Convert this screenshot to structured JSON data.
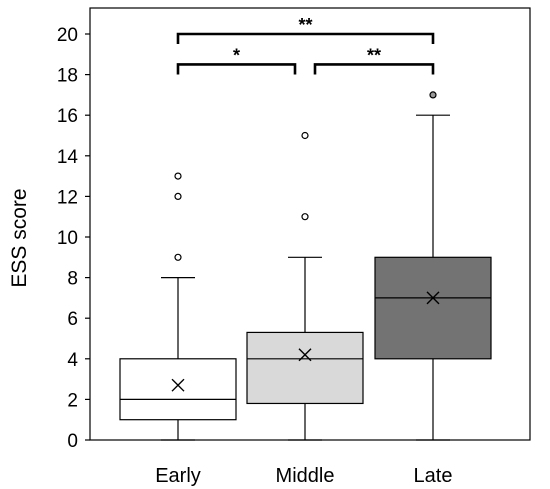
{
  "chart_data": {
    "type": "box",
    "xlabel": "",
    "ylabel": "ESS score",
    "ylim": [
      0,
      21
    ],
    "y_ticks": [
      0,
      2,
      4,
      6,
      8,
      10,
      12,
      14,
      16,
      18,
      20
    ],
    "grid": false,
    "categories": [
      "Early",
      "Middle",
      "Late"
    ],
    "boxes": [
      {
        "category": "Early",
        "whisker_low": 0,
        "q1": 1,
        "median": 2,
        "q3": 4,
        "whisker_high": 8,
        "mean": 2.7,
        "outliers": [
          9,
          12,
          13
        ],
        "fill": "#ffffff"
      },
      {
        "category": "Middle",
        "whisker_low": 0,
        "q1": 1.8,
        "median": 4,
        "q3": 5.3,
        "whisker_high": 9,
        "mean": 4.2,
        "outliers": [
          11,
          15
        ],
        "fill": "#d9d9d9"
      },
      {
        "category": "Late",
        "whisker_low": 0,
        "q1": 4,
        "median": 7,
        "q3": 9,
        "whisker_high": 16,
        "mean": 7,
        "outliers": [
          17
        ],
        "fill": "#737373"
      }
    ],
    "significance": [
      {
        "from": "Early",
        "to": "Middle",
        "label": "*",
        "y": 18.5
      },
      {
        "from": "Middle",
        "to": "Late",
        "label": "**",
        "y": 18.5
      },
      {
        "from": "Early",
        "to": "Late",
        "label": "**",
        "y": 20
      }
    ]
  }
}
